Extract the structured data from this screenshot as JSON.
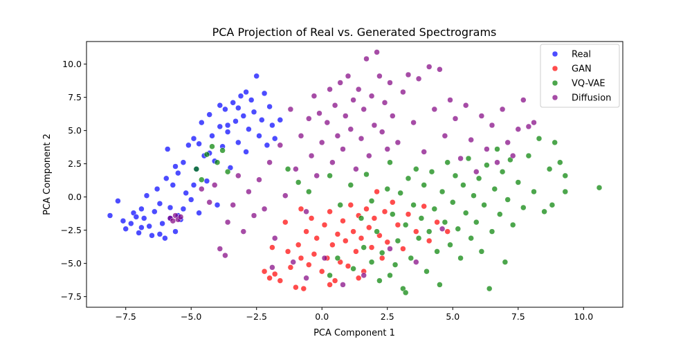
{
  "chart_data": {
    "type": "scatter",
    "title": "PCA Projection of Real vs. Generated Spectrograms",
    "xlabel": "PCA Component 1",
    "ylabel": "PCA Component 2",
    "xlim": [
      -9.0,
      11.5
    ],
    "ylim": [
      -8.3,
      11.7
    ],
    "xticks": [
      -7.5,
      -5.0,
      -2.5,
      0.0,
      2.5,
      5.0,
      7.5,
      10.0
    ],
    "xtick_labels": [
      "−7.5",
      "−5.0",
      "−2.5",
      "0.0",
      "2.5",
      "5.0",
      "7.5",
      "10.0"
    ],
    "yticks": [
      -7.5,
      -5.0,
      -2.5,
      0.0,
      2.5,
      5.0,
      7.5,
      10.0
    ],
    "ytick_labels": [
      "−7.5",
      "−5.0",
      "−2.5",
      "0.0",
      "2.5",
      "5.0",
      "7.5",
      "10.0"
    ],
    "grid": false,
    "legend_position": "top-right",
    "series": [
      {
        "name": "Real",
        "color": "#0000ff",
        "points": [
          [
            -8.1,
            -1.4
          ],
          [
            -7.8,
            -0.3
          ],
          [
            -7.6,
            -1.8
          ],
          [
            -7.5,
            -2.4
          ],
          [
            -7.3,
            -2.0
          ],
          [
            -7.2,
            -1.2
          ],
          [
            -7.0,
            -2.7
          ],
          [
            -6.9,
            -0.9
          ],
          [
            -6.8,
            -1.6
          ],
          [
            -6.7,
            0.1
          ],
          [
            -6.6,
            -2.2
          ],
          [
            -6.5,
            -2.9
          ],
          [
            -6.4,
            -1.1
          ],
          [
            -6.3,
            0.6
          ],
          [
            -6.2,
            -0.5
          ],
          [
            -6.1,
            -2.0
          ],
          [
            -6.0,
            -3.1
          ],
          [
            -5.95,
            1.4
          ],
          [
            -5.9,
            3.6
          ],
          [
            -5.8,
            -0.8
          ],
          [
            -5.7,
            0.9
          ],
          [
            -5.6,
            -2.6
          ],
          [
            -5.5,
            1.8
          ],
          [
            -5.4,
            -1.7
          ],
          [
            -5.3,
            2.6
          ],
          [
            -5.2,
            0.3
          ],
          [
            -5.1,
            3.9
          ],
          [
            -5.0,
            -0.2
          ],
          [
            -4.9,
            4.4
          ],
          [
            -4.8,
            2.1
          ],
          [
            -4.7,
            -1.2
          ],
          [
            -4.6,
            5.6
          ],
          [
            -4.5,
            3.1
          ],
          [
            -4.4,
            1.2
          ],
          [
            -4.3,
            6.2
          ],
          [
            -4.2,
            4.6
          ],
          [
            -4.1,
            2.7
          ],
          [
            -4.0,
            -0.6
          ],
          [
            -3.9,
            5.3
          ],
          [
            -3.8,
            3.8
          ],
          [
            -3.7,
            6.6
          ],
          [
            -3.6,
            4.9
          ],
          [
            -3.5,
            2.2
          ],
          [
            -3.4,
            7.1
          ],
          [
            -3.3,
            5.7
          ],
          [
            -3.2,
            4.1
          ],
          [
            -3.1,
            7.6
          ],
          [
            -3.0,
            6.1
          ],
          [
            -2.9,
            3.4
          ],
          [
            -2.8,
            5.1
          ],
          [
            -2.7,
            7.3
          ],
          [
            -2.6,
            6.4
          ],
          [
            -2.5,
            9.1
          ],
          [
            -2.4,
            4.6
          ],
          [
            -2.3,
            5.8
          ],
          [
            -2.2,
            7.8
          ],
          [
            -2.1,
            3.9
          ],
          [
            -2.0,
            6.8
          ],
          [
            -1.9,
            5.4
          ],
          [
            -1.8,
            4.4
          ],
          [
            -1.6,
            5.8
          ],
          [
            -5.8,
            -1.6
          ],
          [
            -5.5,
            -1.4
          ],
          [
            -6.9,
            -2.3
          ],
          [
            -7.1,
            -1.5
          ],
          [
            -6.2,
            -2.8
          ],
          [
            -5.3,
            -0.9
          ],
          [
            -4.9,
            0.9
          ],
          [
            -5.6,
            2.3
          ],
          [
            -4.3,
            3.3
          ],
          [
            -3.9,
            6.9
          ],
          [
            -3.2,
            6.7
          ],
          [
            -2.9,
            7.9
          ],
          [
            -3.6,
            5.4
          ],
          [
            -4.7,
            4.0
          ]
        ]
      },
      {
        "name": "GAN",
        "color": "#ff0000",
        "points": [
          [
            -2.2,
            -5.6
          ],
          [
            -2.0,
            -6.1
          ],
          [
            -1.8,
            -5.8
          ],
          [
            -1.6,
            -6.3
          ],
          [
            -1.3,
            -4.1
          ],
          [
            -1.2,
            -5.3
          ],
          [
            -1.0,
            -6.8
          ],
          [
            -0.9,
            -3.6
          ],
          [
            -0.8,
            -4.6
          ],
          [
            -0.7,
            -6.9
          ],
          [
            -0.6,
            -2.6
          ],
          [
            -0.5,
            -5.1
          ],
          [
            -0.4,
            -1.6
          ],
          [
            -0.3,
            -4.3
          ],
          [
            -0.2,
            -3.1
          ],
          [
            0.0,
            -5.6
          ],
          [
            0.1,
            -2.1
          ],
          [
            0.2,
            -4.6
          ],
          [
            0.3,
            -1.1
          ],
          [
            0.4,
            -3.6
          ],
          [
            0.5,
            -6.3
          ],
          [
            0.6,
            -2.8
          ],
          [
            0.7,
            -4.9
          ],
          [
            0.8,
            -1.8
          ],
          [
            0.9,
            -3.3
          ],
          [
            1.0,
            -5.2
          ],
          [
            1.1,
            -0.6
          ],
          [
            1.2,
            -2.6
          ],
          [
            1.3,
            -4.1
          ],
          [
            1.4,
            -1.4
          ],
          [
            1.5,
            -3.1
          ],
          [
            1.6,
            -5.6
          ],
          [
            1.7,
            -0.9
          ],
          [
            1.8,
            -2.3
          ],
          [
            1.9,
            -3.8
          ],
          [
            2.0,
            -1.6
          ],
          [
            2.1,
            0.4
          ],
          [
            2.2,
            -2.9
          ],
          [
            2.3,
            -4.6
          ],
          [
            2.4,
            -1.1
          ],
          [
            2.5,
            -3.4
          ],
          [
            2.7,
            -0.4
          ],
          [
            2.9,
            -2.1
          ],
          [
            3.1,
            -3.9
          ],
          [
            3.3,
            -1.3
          ],
          [
            3.6,
            -2.6
          ],
          [
            3.9,
            -0.7
          ],
          [
            4.1,
            -3.3
          ],
          [
            4.4,
            -1.9
          ],
          [
            4.8,
            -2.6
          ],
          [
            -1.4,
            -1.9
          ],
          [
            -1.9,
            -3.8
          ],
          [
            -0.8,
            -0.9
          ],
          [
            0.3,
            -6.6
          ],
          [
            1.4,
            -6.1
          ]
        ]
      },
      {
        "name": "VQ-VAE",
        "color": "#008000",
        "points": [
          [
            -4.8,
            2.1
          ],
          [
            -4.6,
            1.3
          ],
          [
            -4.4,
            3.2
          ],
          [
            -4.2,
            3.8
          ],
          [
            -4.0,
            2.6
          ],
          [
            -3.8,
            3.5
          ],
          [
            -3.6,
            1.9
          ],
          [
            -1.3,
            2.1
          ],
          [
            -0.9,
            1.1
          ],
          [
            -0.5,
            0.4
          ],
          [
            0.3,
            1.6
          ],
          [
            0.7,
            -0.6
          ],
          [
            1.1,
            0.9
          ],
          [
            1.5,
            -1.6
          ],
          [
            1.7,
            1.7
          ],
          [
            1.9,
            -0.3
          ],
          [
            2.1,
            -2.6
          ],
          [
            2.3,
            -4.2
          ],
          [
            2.5,
            0.6
          ],
          [
            2.6,
            2.6
          ],
          [
            2.7,
            -1.3
          ],
          [
            2.8,
            -5.1
          ],
          [
            2.9,
            -3.3
          ],
          [
            3.0,
            0.3
          ],
          [
            3.1,
            -6.9
          ],
          [
            3.2,
            -2.1
          ],
          [
            3.3,
            1.4
          ],
          [
            3.4,
            -4.6
          ],
          [
            3.5,
            -0.6
          ],
          [
            3.6,
            2.1
          ],
          [
            3.7,
            -3.1
          ],
          [
            3.8,
            -1.6
          ],
          [
            3.9,
            0.9
          ],
          [
            4.0,
            -5.6
          ],
          [
            4.1,
            -2.6
          ],
          [
            4.2,
            1.9
          ],
          [
            4.3,
            -0.9
          ],
          [
            4.4,
            -4.1
          ],
          [
            4.5,
            -6.6
          ],
          [
            4.6,
            0.4
          ],
          [
            4.7,
            -1.9
          ],
          [
            4.8,
            2.6
          ],
          [
            4.9,
            -3.6
          ],
          [
            5.0,
            -0.4
          ],
          [
            5.1,
            1.6
          ],
          [
            5.2,
            -2.4
          ],
          [
            5.3,
            -4.6
          ],
          [
            5.4,
            0.9
          ],
          [
            5.5,
            -1.2
          ],
          [
            5.6,
            2.9
          ],
          [
            5.7,
            -3.1
          ],
          [
            5.8,
            0.1
          ],
          [
            5.9,
            -1.9
          ],
          [
            6.0,
            1.4
          ],
          [
            6.1,
            -4.1
          ],
          [
            6.2,
            -0.6
          ],
          [
            6.3,
            2.4
          ],
          [
            6.4,
            -6.9
          ],
          [
            6.5,
            -2.6
          ],
          [
            6.6,
            0.6
          ],
          [
            6.7,
            3.6
          ],
          [
            6.8,
            -1.3
          ],
          [
            6.9,
            1.9
          ],
          [
            7.0,
            -4.9
          ],
          [
            7.1,
            -0.2
          ],
          [
            7.2,
            2.8
          ],
          [
            7.3,
            -2.1
          ],
          [
            7.5,
            1.1
          ],
          [
            7.7,
            -0.8
          ],
          [
            7.9,
            3.1
          ],
          [
            8.1,
            0.4
          ],
          [
            8.3,
            4.4
          ],
          [
            8.5,
            -1.1
          ],
          [
            8.7,
            2.1
          ],
          [
            8.9,
            4.1
          ],
          [
            9.1,
            2.6
          ],
          [
            9.3,
            0.4
          ],
          [
            10.6,
            0.7
          ],
          [
            9.3,
            1.6
          ],
          [
            8.8,
            -0.6
          ],
          [
            3.2,
            -7.2
          ],
          [
            2.6,
            -5.9
          ],
          [
            1.9,
            -4.9
          ],
          [
            1.2,
            -5.4
          ],
          [
            0.6,
            -4.6
          ],
          [
            0.3,
            -5.9
          ],
          [
            1.6,
            -3.8
          ],
          [
            2.2,
            -6.3
          ]
        ]
      },
      {
        "name": "Diffusion",
        "color": "#800080",
        "points": [
          [
            -5.8,
            -1.6
          ],
          [
            -5.6,
            -1.4
          ],
          [
            -5.5,
            -1.7
          ],
          [
            -5.4,
            -1.5
          ],
          [
            -5.7,
            -1.8
          ],
          [
            -4.6,
            0.6
          ],
          [
            -4.3,
            -0.4
          ],
          [
            -4.1,
            0.9
          ],
          [
            -3.9,
            -3.9
          ],
          [
            -3.7,
            -4.4
          ],
          [
            -3.6,
            -1.9
          ],
          [
            -3.4,
            -0.6
          ],
          [
            -3.2,
            1.6
          ],
          [
            -3.0,
            -2.6
          ],
          [
            -2.8,
            0.4
          ],
          [
            -2.6,
            -1.4
          ],
          [
            -2.4,
            1.3
          ],
          [
            -2.2,
            -0.9
          ],
          [
            -2.0,
            2.6
          ],
          [
            -1.8,
            -3.1
          ],
          [
            -1.6,
            3.9
          ],
          [
            -1.4,
            0.1
          ],
          [
            -1.2,
            6.6
          ],
          [
            -1.0,
            2.1
          ],
          [
            -0.8,
            4.6
          ],
          [
            -0.6,
            -1.1
          ],
          [
            -0.5,
            5.9
          ],
          [
            -0.4,
            3.1
          ],
          [
            -0.3,
            7.6
          ],
          [
            -0.2,
            1.6
          ],
          [
            -0.1,
            6.3
          ],
          [
            0.0,
            4.1
          ],
          [
            0.1,
            -4.6
          ],
          [
            0.2,
            5.6
          ],
          [
            0.3,
            8.1
          ],
          [
            0.4,
            2.6
          ],
          [
            0.5,
            6.9
          ],
          [
            0.6,
            4.6
          ],
          [
            0.7,
            8.6
          ],
          [
            0.8,
            3.6
          ],
          [
            0.9,
            6.1
          ],
          [
            1.0,
            9.1
          ],
          [
            1.1,
            5.1
          ],
          [
            1.2,
            7.3
          ],
          [
            1.3,
            2.1
          ],
          [
            1.4,
            8.1
          ],
          [
            1.5,
            4.4
          ],
          [
            1.6,
            6.6
          ],
          [
            1.7,
            10.4
          ],
          [
            1.8,
            3.1
          ],
          [
            1.9,
            7.6
          ],
          [
            2.0,
            5.4
          ],
          [
            2.1,
            10.9
          ],
          [
            2.2,
            9.1
          ],
          [
            2.3,
            4.9
          ],
          [
            2.4,
            7.1
          ],
          [
            2.5,
            3.6
          ],
          [
            2.6,
            8.6
          ],
          [
            2.7,
            6.1
          ],
          [
            2.9,
            4.1
          ],
          [
            3.1,
            7.9
          ],
          [
            3.3,
            9.2
          ],
          [
            3.5,
            5.6
          ],
          [
            3.7,
            8.9
          ],
          [
            3.9,
            3.4
          ],
          [
            4.1,
            9.8
          ],
          [
            4.3,
            6.6
          ],
          [
            4.5,
            9.6
          ],
          [
            4.7,
            4.6
          ],
          [
            4.9,
            7.3
          ],
          [
            5.1,
            5.9
          ],
          [
            5.3,
            2.9
          ],
          [
            5.5,
            6.9
          ],
          [
            5.7,
            4.3
          ],
          [
            5.9,
            1.9
          ],
          [
            6.1,
            6.1
          ],
          [
            6.3,
            3.6
          ],
          [
            6.5,
            5.4
          ],
          [
            6.7,
            2.6
          ],
          [
            6.9,
            6.6
          ],
          [
            7.1,
            4.1
          ],
          [
            7.3,
            3.1
          ],
          [
            7.5,
            5.1
          ],
          [
            7.7,
            7.3
          ],
          [
            7.9,
            5.3
          ],
          [
            8.1,
            5.6
          ],
          [
            -0.6,
            -6.1
          ],
          [
            0.8,
            -6.6
          ],
          [
            1.6,
            -5.9
          ],
          [
            2.6,
            -3.9
          ],
          [
            3.6,
            -4.9
          ],
          [
            4.6,
            -2.4
          ],
          [
            -1.9,
            -5.3
          ],
          [
            -1.1,
            -4.9
          ]
        ]
      }
    ]
  }
}
